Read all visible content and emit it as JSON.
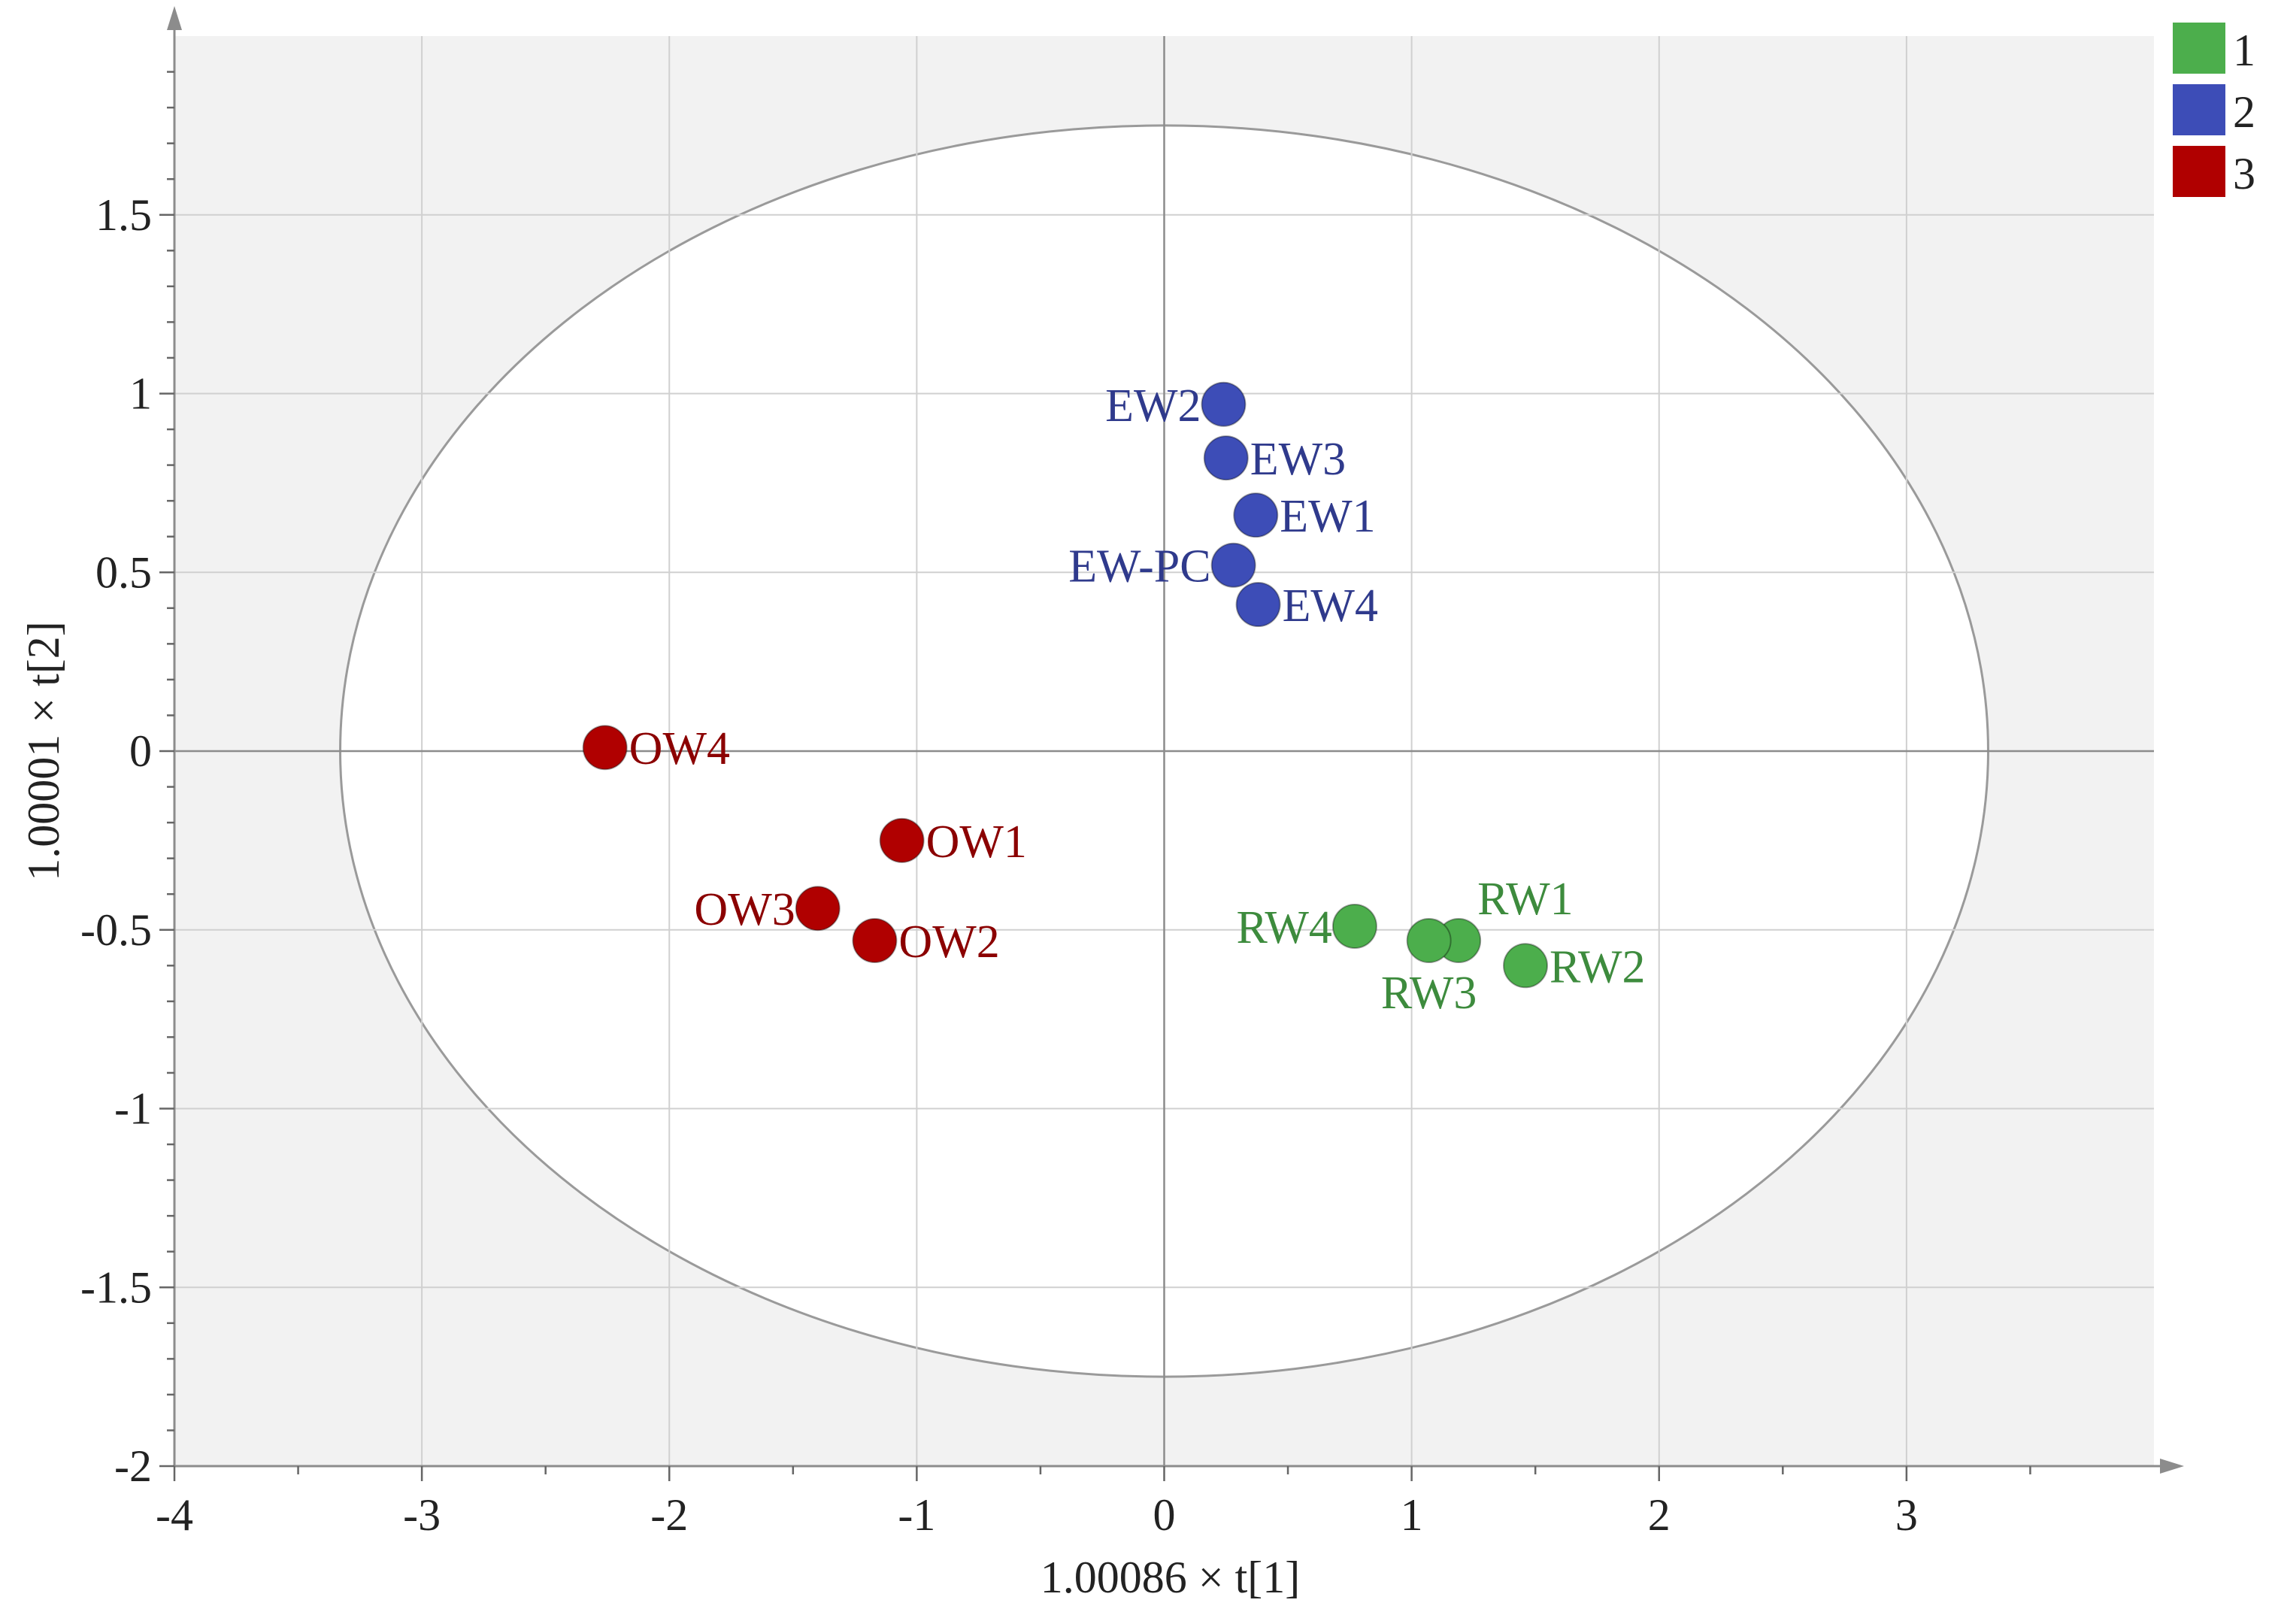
{
  "chart_data": {
    "type": "scatter",
    "xlabel": "1.00086 × t[1]",
    "ylabel": "1.00001 × t[2]",
    "xlim": [
      -4,
      4
    ],
    "ylim": [
      -2,
      2
    ],
    "xticks": [
      -4,
      -3,
      -2,
      -1,
      0,
      1,
      2,
      3
    ],
    "yticks": [
      -2,
      -1.5,
      -1,
      -0.5,
      0,
      0.5,
      1,
      1.5
    ],
    "x_tick_labels": [
      "-4",
      "-3",
      "-2",
      "-1",
      "0",
      "1",
      "2",
      "3"
    ],
    "y_tick_labels": [
      "-2",
      "-1.5",
      "-1",
      "-0.5",
      "0",
      "0.5",
      "1",
      "1.5"
    ],
    "grid": true,
    "hotelling_ellipse": {
      "rx": 3.33,
      "ry": 1.75
    },
    "legend_position": "top-right",
    "series": [
      {
        "name": "1",
        "color": "#4cae4c",
        "label_color": "#3d8b3d",
        "points": [
          {
            "label": "RW1",
            "x": 1.19,
            "y": -0.53
          },
          {
            "label": "RW2",
            "x": 1.46,
            "y": -0.6
          },
          {
            "label": "RW3",
            "x": 1.07,
            "y": -0.53
          },
          {
            "label": "RW4",
            "x": 0.77,
            "y": -0.49
          }
        ]
      },
      {
        "name": "2",
        "color": "#3d4db7",
        "label_color": "#2f3a8c",
        "points": [
          {
            "label": "EW1",
            "x": 0.37,
            "y": 0.66
          },
          {
            "label": "EW2",
            "x": 0.24,
            "y": 0.97
          },
          {
            "label": "EW3",
            "x": 0.25,
            "y": 0.82
          },
          {
            "label": "EW4",
            "x": 0.38,
            "y": 0.41
          },
          {
            "label": "EW-PC",
            "x": 0.28,
            "y": 0.52
          }
        ]
      },
      {
        "name": "3",
        "color": "#b00000",
        "label_color": "#8b0000",
        "points": [
          {
            "label": "OW1",
            "x": -1.06,
            "y": -0.25
          },
          {
            "label": "OW2",
            "x": -1.17,
            "y": -0.53
          },
          {
            "label": "OW3",
            "x": -1.4,
            "y": -0.44
          },
          {
            "label": "OW4",
            "x": -2.26,
            "y": 0.01
          }
        ]
      }
    ]
  }
}
